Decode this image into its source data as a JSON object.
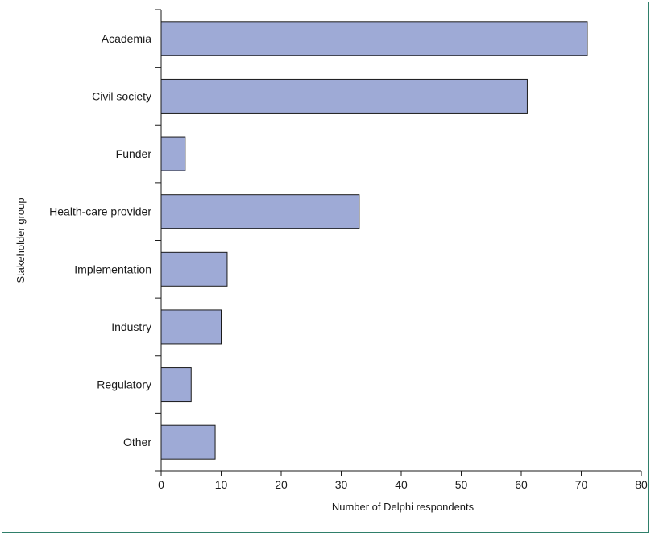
{
  "chart_data": {
    "type": "bar",
    "orientation": "horizontal",
    "categories": [
      "Academia",
      "Civil society",
      "Funder",
      "Health-care provider",
      "Implementation",
      "Industry",
      "Regulatory",
      "Other"
    ],
    "values": [
      71,
      61,
      4,
      33,
      11,
      10,
      5,
      9
    ],
    "xlabel": "Number of Delphi respondents",
    "ylabel": "Stakeholder group",
    "xlim": [
      0,
      80
    ],
    "xticks": [
      "0",
      "10",
      "20",
      "30",
      "40",
      "50",
      "60",
      "70",
      "80"
    ],
    "grid": false,
    "legend": "none",
    "colors": {
      "bar_fill": "#9eaad6",
      "bar_stroke": "#1a1a1a",
      "frame": "#2f7f6a"
    }
  }
}
